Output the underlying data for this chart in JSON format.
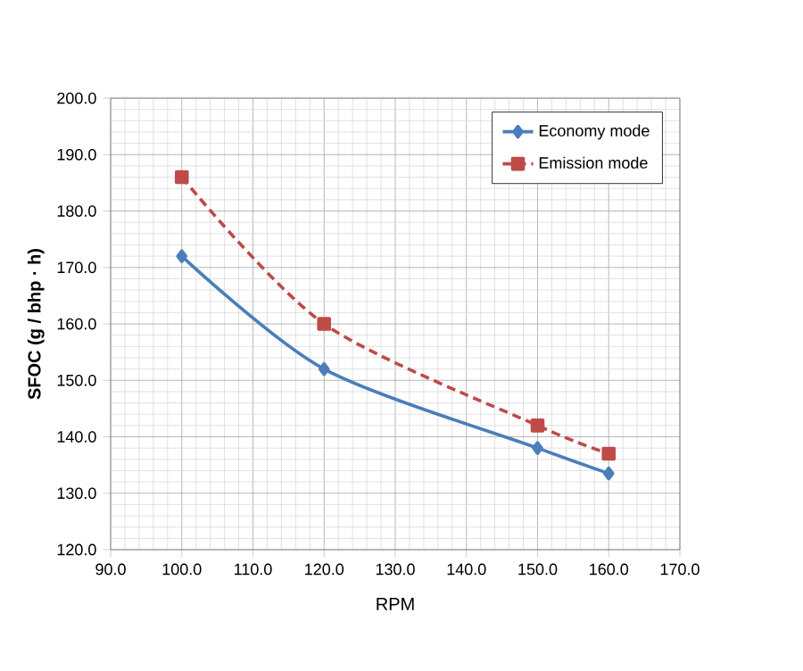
{
  "chart_data": {
    "type": "line",
    "xlabel": "RPM",
    "ylabel": "SFOC (g / bhp · h)",
    "xlim": [
      90,
      170
    ],
    "ylim": [
      120,
      200
    ],
    "xticks": [
      {
        "value": 90,
        "label": "90.0"
      },
      {
        "value": 100,
        "label": "100.0"
      },
      {
        "value": 110,
        "label": "110.0"
      },
      {
        "value": 120,
        "label": "120.0"
      },
      {
        "value": 130,
        "label": "130.0"
      },
      {
        "value": 140,
        "label": "140.0"
      },
      {
        "value": 150,
        "label": "150.0"
      },
      {
        "value": 160,
        "label": "160.0"
      },
      {
        "value": 170,
        "label": "170.0"
      }
    ],
    "yticks": [
      {
        "value": 120,
        "label": "120.0"
      },
      {
        "value": 130,
        "label": "130.0"
      },
      {
        "value": 140,
        "label": "140.0"
      },
      {
        "value": 150,
        "label": "150.0"
      },
      {
        "value": 160,
        "label": "160.0"
      },
      {
        "value": 170,
        "label": "170.0"
      },
      {
        "value": 180,
        "label": "180.0"
      },
      {
        "value": 190,
        "label": "190.0"
      },
      {
        "value": 200,
        "label": "200.0"
      }
    ],
    "x": [
      100,
      120,
      150,
      160
    ],
    "grid": true,
    "legend": "top right",
    "series": [
      {
        "name": "Economy mode",
        "color": "#4a7ebb",
        "values": [
          172,
          152,
          138,
          133.5
        ],
        "marker": "diamond",
        "line_style": "solid"
      },
      {
        "name": "Emission mode",
        "color": "#be4b48",
        "values": [
          186,
          160,
          142,
          137
        ],
        "marker": "square",
        "line_style": "dashed"
      }
    ]
  }
}
